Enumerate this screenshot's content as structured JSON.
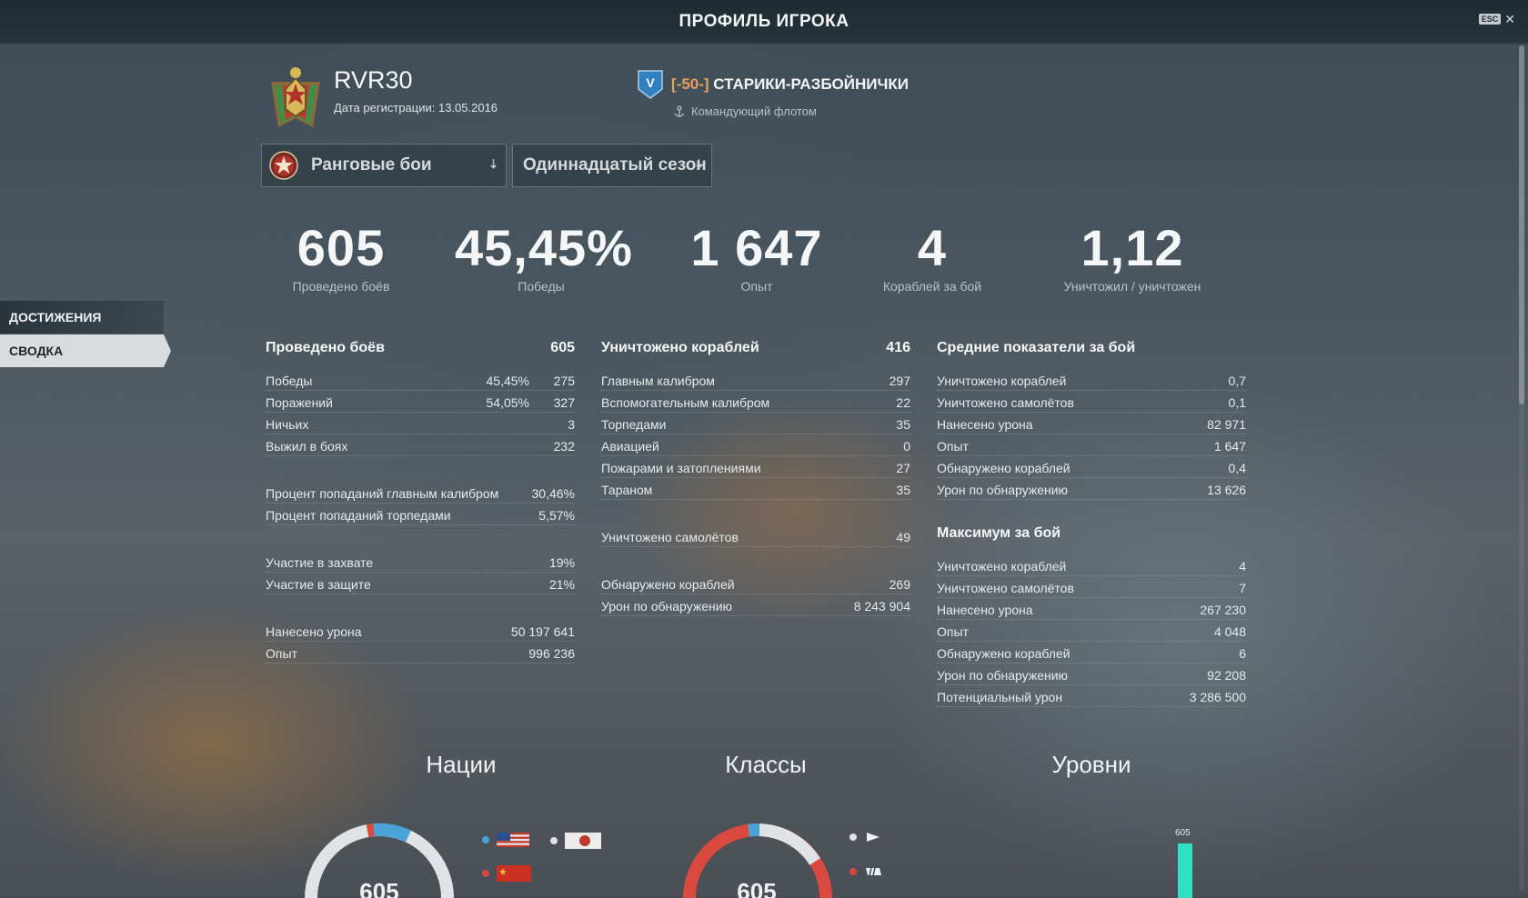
{
  "window": {
    "title": "ПРОФИЛЬ ИГРОКА",
    "esc_label": "ESC",
    "close_glyph": "✕"
  },
  "player": {
    "name": "RVR30",
    "reg_date": "Дата регистрации: 13.05.2016"
  },
  "clan": {
    "tier_letter": "V",
    "tag": "[-50-]",
    "name": "СТАРИКИ-РАЗБОЙНИЧКИ",
    "role": "Командующий флотом"
  },
  "filters": {
    "mode": "Ранговые бои",
    "season": "Одиннадцатый сезон"
  },
  "tabs": {
    "achievements": "ДОСТИЖЕНИЯ",
    "summary": "СВОДКА"
  },
  "highlights": [
    {
      "value": "605",
      "label": "Проведено боёв"
    },
    {
      "value": "45,45%",
      "label": "Победы"
    },
    {
      "value": "1 647",
      "label": "Опыт"
    },
    {
      "value": "4",
      "label": "Кораблей за бой"
    },
    {
      "value": "1,12",
      "label": "Уничтожил / уничтожен"
    }
  ],
  "battles": {
    "title": "Проведено боёв",
    "total": "605",
    "rows": [
      {
        "label": "Победы",
        "pct": "45,45%",
        "value": "275"
      },
      {
        "label": "Поражений",
        "pct": "54,05%",
        "value": "327"
      },
      {
        "label": "Ничьих",
        "pct": "",
        "value": "3"
      },
      {
        "label": "Выжил в боях",
        "pct": "",
        "value": "232"
      }
    ],
    "accuracy": [
      {
        "label": "Процент попаданий главным калибром",
        "value": "30,46%"
      },
      {
        "label": "Процент попаданий торпедами",
        "value": "5,57%"
      }
    ],
    "capture": [
      {
        "label": "Участие в захвате",
        "value": "19%"
      },
      {
        "label": "Участие в защите",
        "value": "21%"
      }
    ],
    "totals": [
      {
        "label": "Нанесено урона",
        "value": "50 197 641"
      },
      {
        "label": "Опыт",
        "value": "996 236"
      }
    ]
  },
  "destroyed": {
    "title": "Уничтожено кораблей",
    "total": "416",
    "rows": [
      {
        "label": "Главным калибром",
        "value": "297"
      },
      {
        "label": "Вспомогательным калибром",
        "value": "22"
      },
      {
        "label": "Торпедами",
        "value": "35"
      },
      {
        "label": "Авиацией",
        "value": "0"
      },
      {
        "label": "Пожарами и затоплениями",
        "value": "27"
      },
      {
        "label": "Тараном",
        "value": "35"
      }
    ],
    "planes": {
      "label": "Уничтожено самолётов",
      "value": "49"
    },
    "spotting": [
      {
        "label": "Обнаружено кораблей",
        "value": "269"
      },
      {
        "label": "Урон по обнаружению",
        "value": "8 243 904"
      }
    ]
  },
  "average": {
    "title": "Средние показатели за бой",
    "rows": [
      {
        "label": "Уничтожено кораблей",
        "value": "0,7"
      },
      {
        "label": "Уничтожено самолётов",
        "value": "0,1"
      },
      {
        "label": "Нанесено урона",
        "value": "82 971"
      },
      {
        "label": "Опыт",
        "value": "1 647"
      },
      {
        "label": "Обнаружено кораблей",
        "value": "0,4"
      },
      {
        "label": "Урон по обнаружению",
        "value": "13 626"
      }
    ]
  },
  "maximum": {
    "title": "Максимум за бой",
    "rows": [
      {
        "label": "Уничтожено кораблей",
        "value": "4"
      },
      {
        "label": "Уничтожено самолётов",
        "value": "7"
      },
      {
        "label": "Нанесено урона",
        "value": "267 230"
      },
      {
        "label": "Опыт",
        "value": "4 048"
      },
      {
        "label": "Обнаружено кораблей",
        "value": "6"
      },
      {
        "label": "Урон по обнаружению",
        "value": "92 208"
      },
      {
        "label": "Потенциальный урон",
        "value": "3 286 500"
      }
    ]
  },
  "charts": {
    "nations": {
      "title": "Нации",
      "center": "605"
    },
    "classes": {
      "title": "Классы",
      "center": "605"
    },
    "tiers": {
      "title": "Уровни",
      "bar_label": "605"
    }
  },
  "colors": {
    "accent_blue": "#4aa3d8",
    "accent_red": "#d9493f",
    "ring_light": "#dfe3e6",
    "tier_bar": "#2fe0c4",
    "clan_tag": "#e7a15a"
  },
  "icons": {
    "esc": "close-icon",
    "mode": "ranked-star-icon",
    "dropdown": "chevron-down-icon",
    "clan_role": "anchor-icon"
  }
}
